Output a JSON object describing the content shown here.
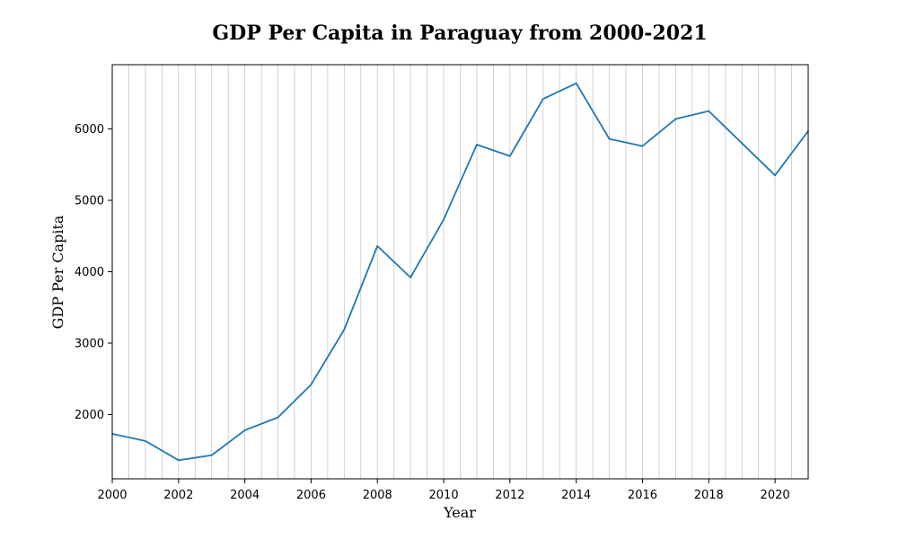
{
  "chart_data": {
    "type": "line",
    "title": "GDP Per Capita in Paraguay from 2000-2021",
    "xlabel": "Year",
    "ylabel": "GDP Per Capita",
    "x": [
      2000,
      2001,
      2002,
      2003,
      2004,
      2005,
      2006,
      2007,
      2008,
      2009,
      2010,
      2011,
      2012,
      2013,
      2014,
      2015,
      2016,
      2017,
      2018,
      2019,
      2020,
      2021
    ],
    "series": [
      {
        "values": [
          1730,
          1630,
          1360,
          1430,
          1780,
          1960,
          2420,
          3190,
          4360,
          3920,
          4730,
          5780,
          5620,
          6420,
          6640,
          5860,
          5760,
          6140,
          6250,
          5800,
          5350,
          5970
        ]
      }
    ],
    "xlim": [
      2000,
      2021
    ],
    "ylim": [
      1100,
      6900
    ],
    "xticks": [
      2000,
      2002,
      2004,
      2006,
      2008,
      2010,
      2012,
      2014,
      2016,
      2018,
      2020
    ],
    "xtick_labels": [
      "2000",
      "2002",
      "2004",
      "2006",
      "2008",
      "2010",
      "2012",
      "2014",
      "2016",
      "2018",
      "2020"
    ],
    "yticks": [
      2000,
      3000,
      4000,
      5000,
      6000
    ],
    "ytick_labels": [
      "2000",
      "3000",
      "4000",
      "5000",
      "6000"
    ],
    "grid": "vertical-at-every-half-year",
    "legend": "none",
    "line_color": "#1f77b4",
    "grid_color": "#c8c8c8"
  }
}
